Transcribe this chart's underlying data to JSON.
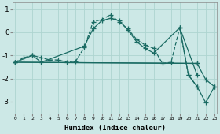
{
  "xlabel": "Humidex (Indice chaleur)",
  "x_ticks": [
    0,
    1,
    2,
    3,
    4,
    5,
    6,
    7,
    8,
    9,
    10,
    11,
    12,
    13,
    14,
    15,
    16,
    17,
    18,
    19,
    20,
    21,
    22,
    23
  ],
  "background_color": "#cce8e6",
  "grid_color": "#aed4d0",
  "line_color": "#1a6b63",
  "lines": [
    {
      "x": [
        0,
        1,
        2,
        3,
        4,
        5,
        6,
        7,
        8,
        9,
        10,
        11,
        12,
        13,
        14,
        15,
        16,
        17,
        18,
        19,
        20,
        21
      ],
      "y": [
        -1.3,
        -1.1,
        -1.0,
        -1.1,
        -1.2,
        -1.2,
        -1.3,
        -1.25,
        -0.65,
        0.45,
        0.55,
        0.75,
        0.45,
        0.15,
        -0.3,
        -0.55,
        -0.7,
        -1.35,
        -1.3,
        0.2,
        -1.85,
        -2.35
      ],
      "linestyle": "--"
    },
    {
      "x": [
        0,
        2,
        3,
        8,
        9,
        10,
        11,
        12,
        13,
        14,
        15,
        16,
        19,
        21
      ],
      "y": [
        -1.3,
        -1.0,
        -1.3,
        -0.6,
        0.15,
        0.5,
        0.6,
        0.5,
        0.1,
        -0.4,
        -0.7,
        -0.9,
        0.2,
        -1.85
      ],
      "linestyle": "-"
    },
    {
      "x": [
        0,
        21
      ],
      "y": [
        -1.3,
        -1.35
      ],
      "linestyle": "-"
    },
    {
      "x": [
        0,
        21,
        22,
        23
      ],
      "y": [
        -1.3,
        -1.35,
        -2.05,
        -2.35
      ],
      "linestyle": "-"
    },
    {
      "x": [
        19,
        20,
        21,
        22,
        23
      ],
      "y": [
        0.2,
        -1.85,
        -2.35,
        -3.05,
        -2.35
      ],
      "linestyle": "-"
    }
  ],
  "ylim": [
    -3.5,
    1.3
  ],
  "xlim": [
    -0.3,
    23.3
  ],
  "yticks": [
    -3,
    -2,
    -1,
    0,
    1
  ]
}
